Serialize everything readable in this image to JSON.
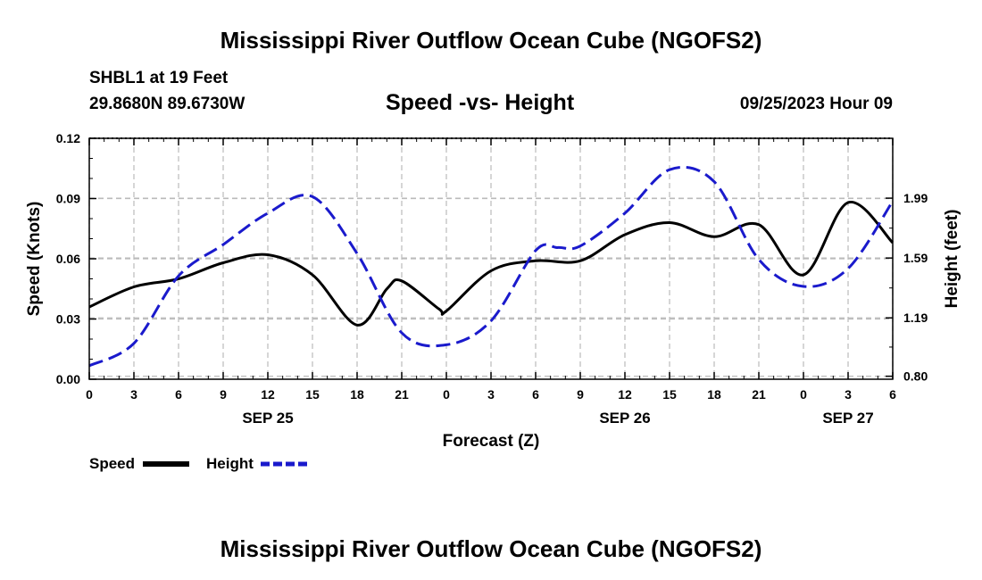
{
  "header": {
    "title": "Mississippi River Outflow Ocean Cube (NGOFS2)",
    "station": "SHBL1 at 19 Feet",
    "coords": "29.8680N  89.6730W",
    "datetime": "09/25/2023 Hour 09"
  },
  "footer": {
    "title": "Mississippi River Outflow Ocean Cube (NGOFS2)"
  },
  "legend": {
    "speed_label": "Speed",
    "height_label": "Height"
  },
  "colors": {
    "speed": "#000000",
    "height": "#1a1acc",
    "grid": "#bbbbbb"
  },
  "chart_data": {
    "type": "line",
    "title": "Speed -vs- Height",
    "xlabel": "Forecast (Z)",
    "ylabel": "Speed (Knots)",
    "y2label": "Height (feet)",
    "x_range": [
      0,
      54
    ],
    "ylim": [
      0,
      0.12
    ],
    "y2lim": [
      0.78,
      2.39
    ],
    "x_ticks": [
      {
        "x": 0,
        "label": "0"
      },
      {
        "x": 3,
        "label": "3"
      },
      {
        "x": 6,
        "label": "6"
      },
      {
        "x": 9,
        "label": "9"
      },
      {
        "x": 12,
        "label": "12"
      },
      {
        "x": 15,
        "label": "15"
      },
      {
        "x": 18,
        "label": "18"
      },
      {
        "x": 21,
        "label": "21"
      },
      {
        "x": 24,
        "label": "0"
      },
      {
        "x": 27,
        "label": "3"
      },
      {
        "x": 30,
        "label": "6"
      },
      {
        "x": 33,
        "label": "9"
      },
      {
        "x": 36,
        "label": "12"
      },
      {
        "x": 39,
        "label": "15"
      },
      {
        "x": 42,
        "label": "18"
      },
      {
        "x": 45,
        "label": "21"
      },
      {
        "x": 48,
        "label": "0"
      },
      {
        "x": 51,
        "label": "3"
      },
      {
        "x": 54,
        "label": "6"
      }
    ],
    "date_labels": [
      {
        "x": 12,
        "label": "SEP 25"
      },
      {
        "x": 36,
        "label": "SEP 26"
      },
      {
        "x": 51,
        "label": "SEP 27"
      }
    ],
    "y_ticks": [
      {
        "value": 0.0,
        "label": "0.00"
      },
      {
        "value": 0.03,
        "label": "0.03"
      },
      {
        "value": 0.06,
        "label": "0.06"
      },
      {
        "value": 0.09,
        "label": "0.09"
      },
      {
        "value": 0.12,
        "label": "0.12"
      }
    ],
    "y2_ticks": [
      {
        "value": 0.8,
        "label": "0.80"
      },
      {
        "value": 1.19,
        "label": "1.19"
      },
      {
        "value": 1.59,
        "label": "1.59"
      },
      {
        "value": 1.99,
        "label": "1.99"
      }
    ],
    "series": [
      {
        "name": "Speed",
        "axis": "left",
        "style": "solid",
        "x": [
          0,
          3,
          6,
          9,
          12,
          15,
          18,
          20,
          21,
          23.5,
          24,
          27,
          30,
          33,
          36,
          39,
          42,
          45,
          48,
          51,
          54
        ],
        "values": [
          0.036,
          0.046,
          0.05,
          0.058,
          0.062,
          0.052,
          0.027,
          0.045,
          0.049,
          0.035,
          0.034,
          0.054,
          0.059,
          0.059,
          0.072,
          0.078,
          0.071,
          0.077,
          0.052,
          0.088,
          0.068
        ]
      },
      {
        "name": "Height",
        "axis": "right",
        "style": "dashed",
        "x": [
          0,
          3,
          6,
          9,
          12,
          15,
          18,
          21,
          24,
          27,
          30,
          31.5,
          33,
          36,
          39,
          42,
          45,
          48,
          51,
          54
        ],
        "values": [
          0.87,
          1.02,
          1.47,
          1.68,
          1.89,
          2.0,
          1.62,
          1.09,
          1.01,
          1.17,
          1.64,
          1.66,
          1.67,
          1.89,
          2.18,
          2.1,
          1.58,
          1.4,
          1.52,
          1.97
        ]
      }
    ]
  }
}
